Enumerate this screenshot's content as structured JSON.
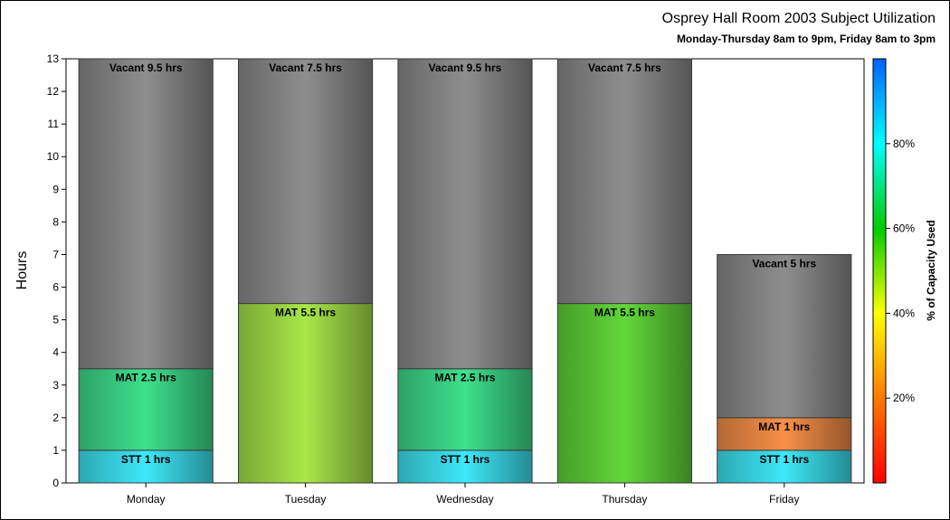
{
  "chart_data": {
    "type": "bar",
    "stacked": true,
    "title": "Osprey Hall Room 2003 Subject Utilization",
    "subtitle": "Monday-Thursday 8am to 9pm, Friday 8am to 3pm",
    "ylabel": "Hours",
    "xlabel": "",
    "ylim": [
      0,
      13
    ],
    "yticks": [
      0,
      1,
      2,
      3,
      4,
      5,
      6,
      7,
      8,
      9,
      10,
      11,
      12,
      13
    ],
    "categories": [
      "Monday",
      "Tuesday",
      "Wednesday",
      "Thursday",
      "Friday"
    ],
    "bars": [
      [
        {
          "label": "STT 1 hrs",
          "value": 1,
          "color": "#3ee8f8"
        },
        {
          "label": "MAT 2.5 hrs",
          "value": 2.5,
          "color": "#3ee08e"
        },
        {
          "label": "Vacant 9.5 hrs",
          "value": 9.5,
          "color": "#8e8e8e"
        }
      ],
      [
        {
          "label": "MAT 5.5 hrs",
          "value": 5.5,
          "color": "#a8e84a"
        },
        {
          "label": "Vacant 7.5 hrs",
          "value": 7.5,
          "color": "#8e8e8e"
        }
      ],
      [
        {
          "label": "STT 1 hrs",
          "value": 1,
          "color": "#3ee8f8"
        },
        {
          "label": "MAT 2.5 hrs",
          "value": 2.5,
          "color": "#3ee08e"
        },
        {
          "label": "Vacant 9.5 hrs",
          "value": 9.5,
          "color": "#8e8e8e"
        }
      ],
      [
        {
          "label": "MAT 5.5 hrs",
          "value": 5.5,
          "color": "#62d83a"
        },
        {
          "label": "Vacant 7.5 hrs",
          "value": 7.5,
          "color": "#8e8e8e"
        }
      ],
      [
        {
          "label": "STT 1 hrs",
          "value": 1,
          "color": "#3ee8f8"
        },
        {
          "label": "MAT 1 hrs",
          "value": 1,
          "color": "#f89048"
        },
        {
          "label": "Vacant 5 hrs",
          "value": 5,
          "color": "#8e8e8e"
        }
      ]
    ],
    "colorbar": {
      "label": "% of Capacity Used",
      "ticks": [
        20,
        40,
        60,
        80
      ],
      "tick_labels": [
        "20%",
        "40%",
        "60%",
        "80%"
      ],
      "range": [
        0,
        100
      ],
      "stops": [
        "#ff0000",
        "#ff7a00",
        "#ffff00",
        "#00cc00",
        "#00ffff",
        "#0060ff"
      ]
    },
    "grid": false
  }
}
